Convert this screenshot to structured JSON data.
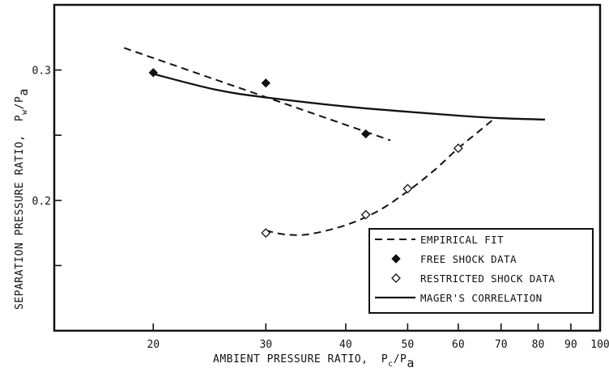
{
  "chart_data": {
    "type": "scatter",
    "xlabel": "AMBIENT PRESSURE RATIO,",
    "xlabel_var": "P",
    "xlabel_sub1": "c",
    "xlabel_sep": "/P",
    "xlabel_sub2": "a",
    "ylabel": "SEPARATION PRESSURE RATIO,",
    "ylabel_var": "P",
    "ylabel_sub1": "w",
    "ylabel_sep": "/P",
    "ylabel_sub2": "a",
    "x_scale": "log",
    "xlim": [
      14,
      100
    ],
    "ylim": [
      0.1,
      0.35
    ],
    "x_ticks": [
      {
        "value": 20,
        "label": "20"
      },
      {
        "value": 30,
        "label": "30"
      },
      {
        "value": 40,
        "label": "40"
      },
      {
        "value": 50,
        "label": "50"
      },
      {
        "value": 60,
        "label": "60"
      },
      {
        "value": 70,
        "label": "70"
      },
      {
        "value": 80,
        "label": "80"
      },
      {
        "value": 90,
        "label": "90"
      },
      {
        "value": 100,
        "label": "100"
      }
    ],
    "y_ticks": [
      {
        "value": 0.15,
        "label": ""
      },
      {
        "value": 0.2,
        "label": "0.2"
      },
      {
        "value": 0.25,
        "label": ""
      },
      {
        "value": 0.3,
        "label": "0.3"
      }
    ],
    "grid": false,
    "legend_position": "bottom-right",
    "series": [
      {
        "name": "EMPIRICAL FIT",
        "kind": "line",
        "style": "dashed",
        "color": "#111111",
        "x": [
          18,
          47
        ],
        "y": [
          0.317,
          0.246
        ]
      },
      {
        "name": "EMPIRICAL FIT",
        "kind": "line",
        "style": "dashed",
        "color": "#111111",
        "x": [
          30,
          32,
          35,
          40,
          45,
          50,
          55,
          60,
          65,
          68
        ],
        "y": [
          0.177,
          0.174,
          0.174,
          0.181,
          0.192,
          0.207,
          0.223,
          0.24,
          0.254,
          0.262
        ]
      },
      {
        "name": "FREE SHOCK DATA",
        "kind": "marker",
        "marker": "filled-diamond",
        "color": "#111111",
        "x": [
          20,
          30,
          43
        ],
        "y": [
          0.298,
          0.29,
          0.251
        ]
      },
      {
        "name": "RESTRICTED SHOCK DATA",
        "kind": "marker",
        "marker": "open-diamond",
        "color": "#111111",
        "x": [
          30,
          43,
          50,
          60
        ],
        "y": [
          0.175,
          0.189,
          0.209,
          0.24
        ]
      },
      {
        "name": "MAGER'S CORRELATION",
        "kind": "line",
        "style": "solid",
        "color": "#111111",
        "x": [
          20,
          25,
          30,
          40,
          50,
          60,
          70,
          82
        ],
        "y": [
          0.297,
          0.285,
          0.279,
          0.272,
          0.268,
          0.265,
          0.263,
          0.262
        ]
      }
    ],
    "legend": [
      {
        "label": "EMPIRICAL FIT",
        "symbol": "dash"
      },
      {
        "label": "FREE SHOCK DATA",
        "symbol": "filled-diamond"
      },
      {
        "label": "RESTRICTED SHOCK DATA",
        "symbol": "open-diamond"
      },
      {
        "label": "MAGER'S CORRELATION",
        "symbol": "solid"
      }
    ]
  }
}
